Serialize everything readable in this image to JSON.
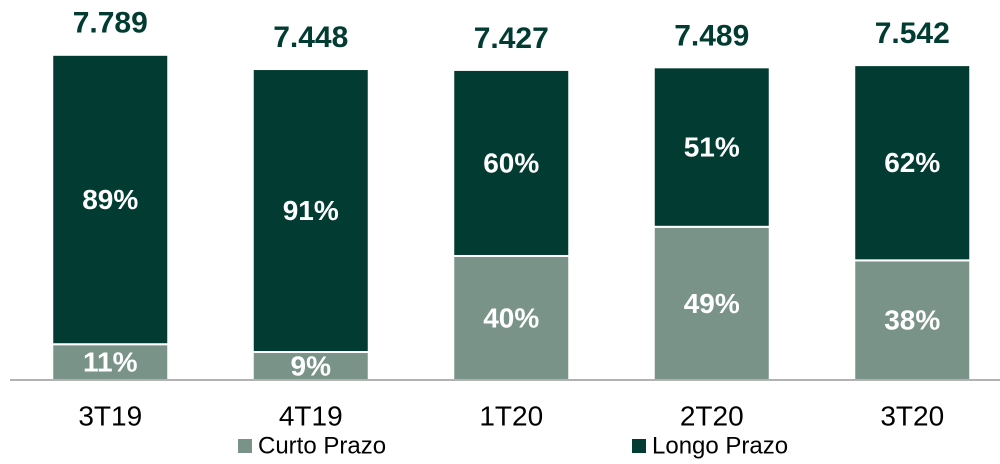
{
  "chart_data": {
    "type": "stacked_bar",
    "categories": [
      "3T19",
      "4T19",
      "1T20",
      "2T20",
      "3T20"
    ],
    "totals": {
      "values": [
        7789,
        7448,
        7427,
        7489,
        7542
      ],
      "value_labels": [
        "7.789",
        "7.448",
        "7.427",
        "7.489",
        "7.542"
      ]
    },
    "series": [
      {
        "name": "Curto Prazo",
        "color": "#7a9389",
        "values": [
          11,
          9,
          40,
          49,
          38
        ],
        "value_labels": [
          "11%",
          "9%",
          "40%",
          "49%",
          "38%"
        ]
      },
      {
        "name": "Longo Prazo",
        "color": "#013b31",
        "values": [
          89,
          91,
          60,
          51,
          62
        ],
        "value_labels": [
          "89%",
          "91%",
          "60%",
          "51%",
          "62%"
        ]
      }
    ],
    "ylim": [
      0,
      8000
    ]
  }
}
